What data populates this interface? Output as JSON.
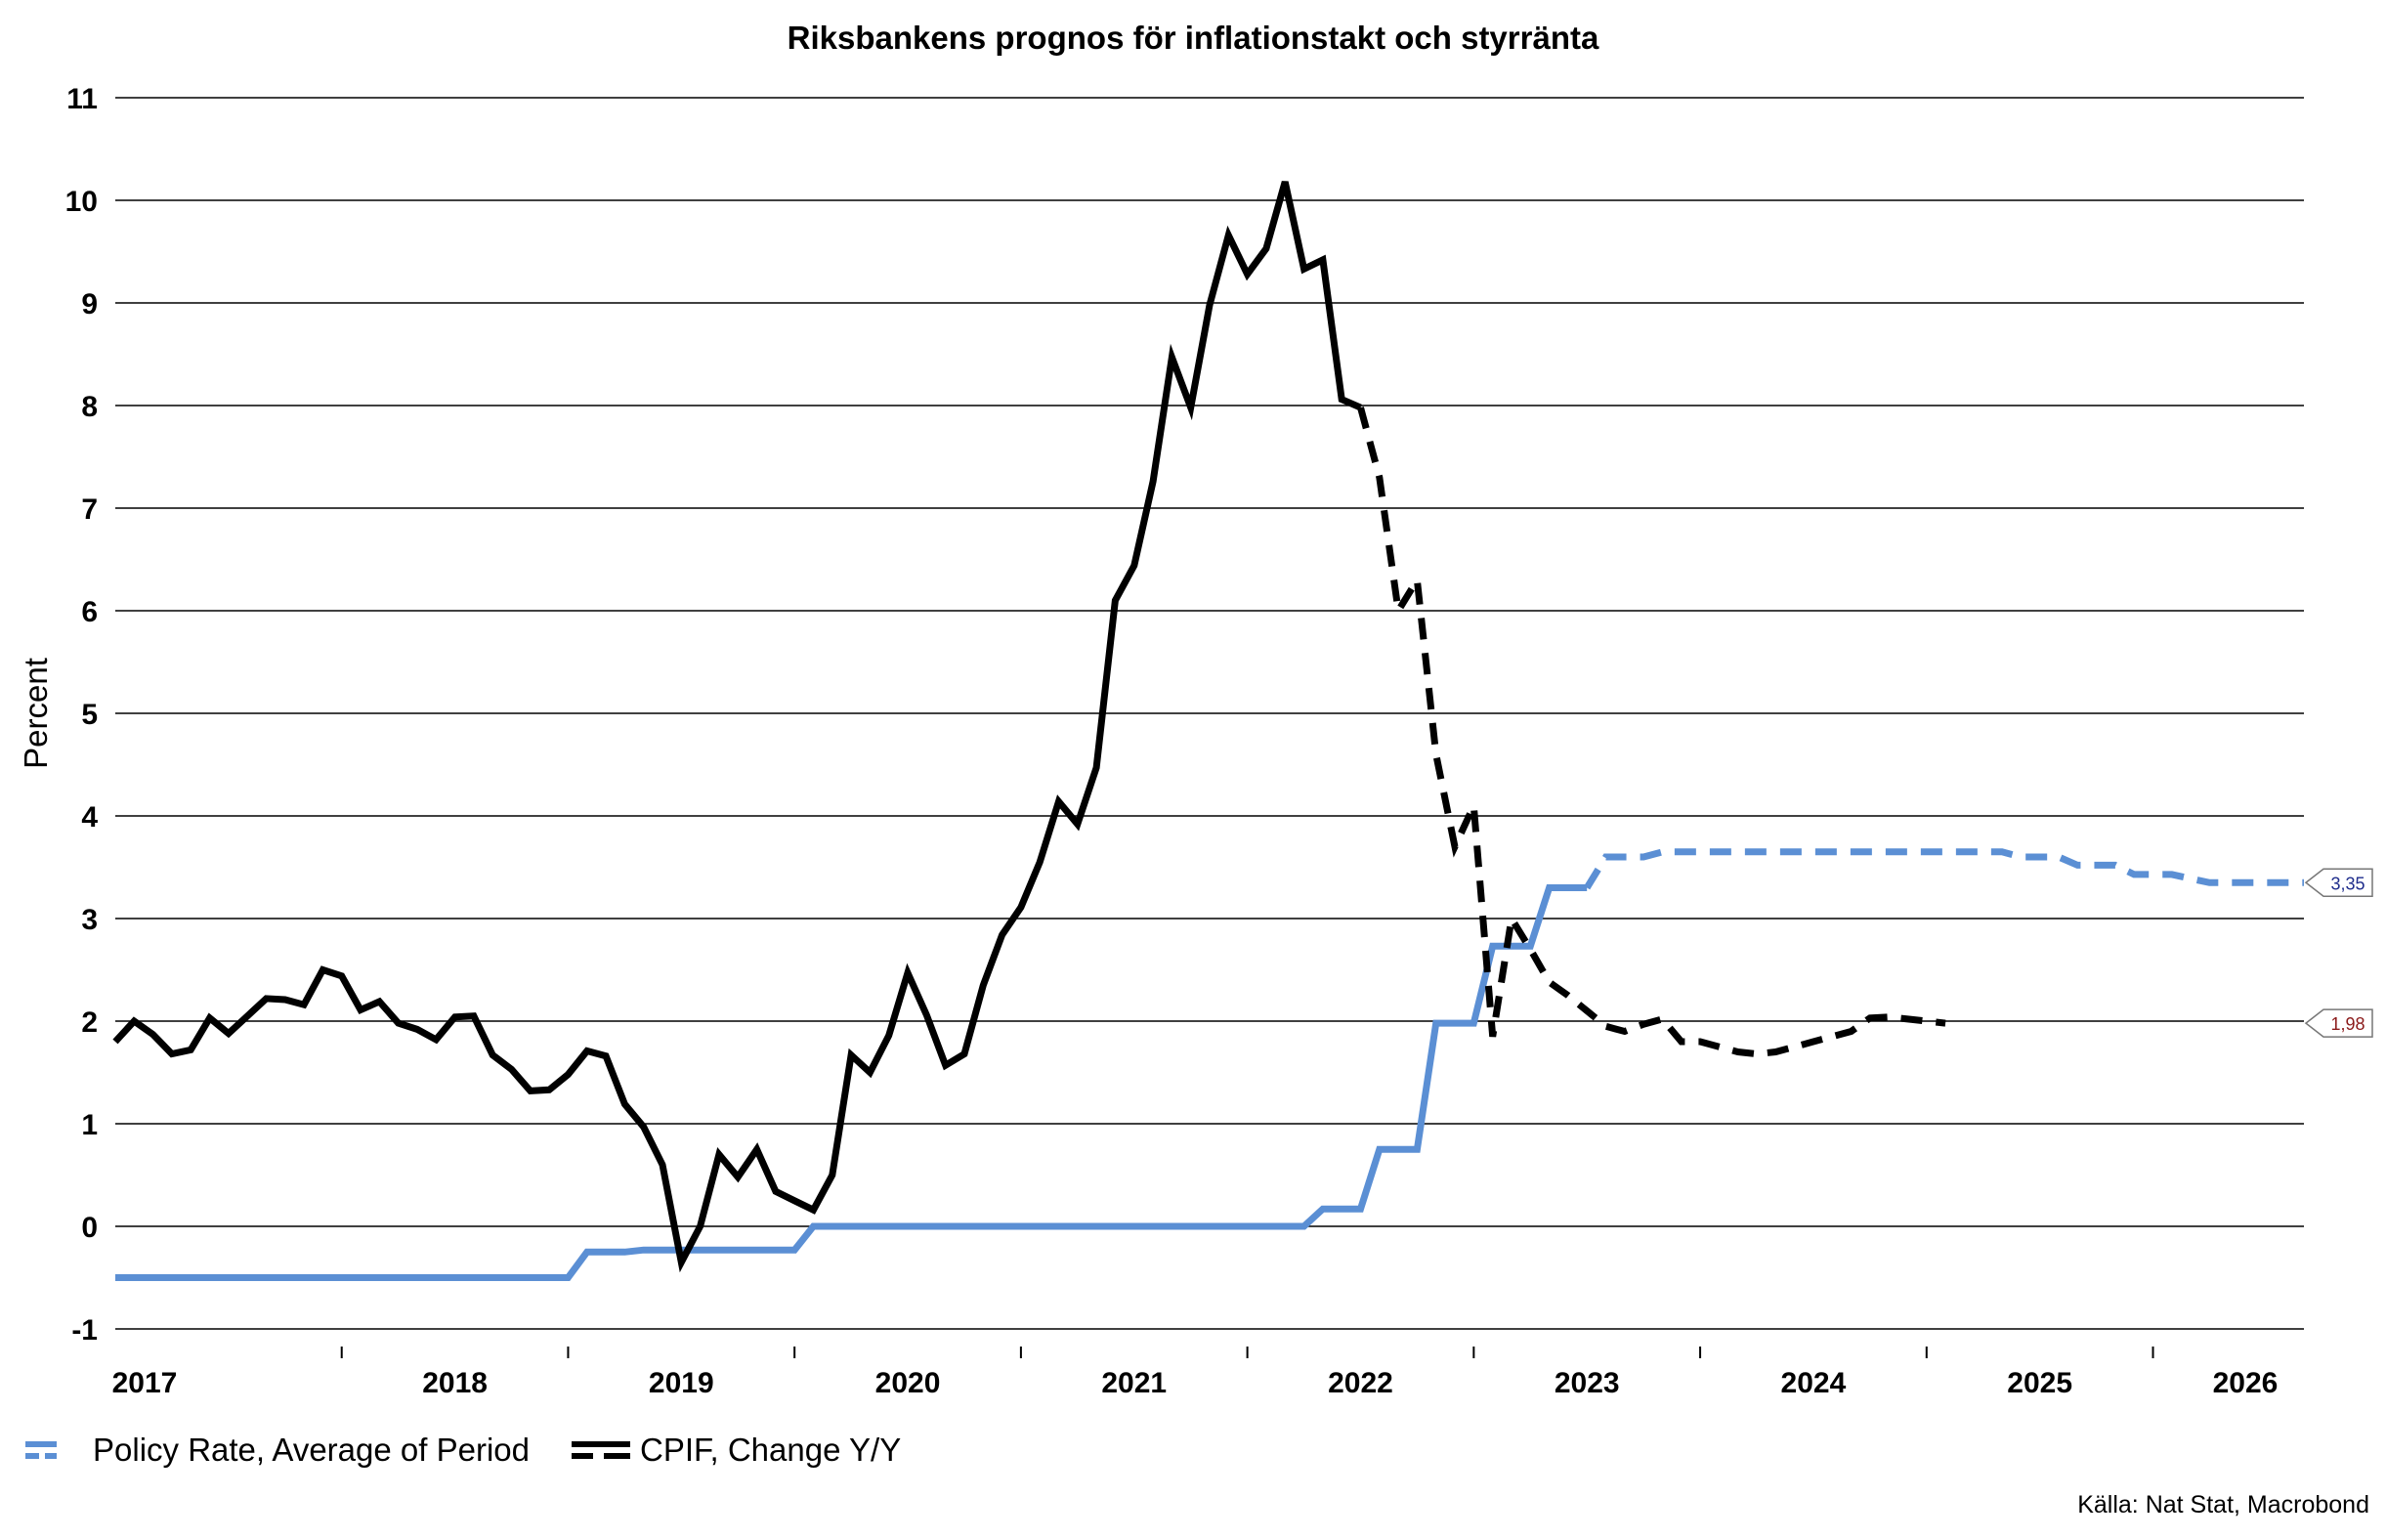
{
  "chart_data": {
    "type": "line",
    "title": "Riksbankens prognos för inflationstakt och styrränta",
    "ylabel": "Percent",
    "xlabel": "",
    "ylim": [
      -1,
      11
    ],
    "yticks": [
      -1,
      0,
      1,
      2,
      3,
      4,
      5,
      6,
      7,
      8,
      9,
      10,
      11
    ],
    "x_start": "2017-01",
    "x_end": "2026-09",
    "year_labels": [
      "2017",
      "2018",
      "2019",
      "2020",
      "2021",
      "2022",
      "2023",
      "2024",
      "2025",
      "2026"
    ],
    "grid": "horizontal",
    "legend_position": "bottom-left",
    "source": "Källa: Nat Stat, Macrobond",
    "series": [
      {
        "name": "Policy Rate, Average of Period",
        "color": "#5b8fd4",
        "end_label": "3,35",
        "end_label_color": "#1f2d8c",
        "actual": [
          [
            "2017-01",
            -0.5
          ],
          [
            "2019-01",
            -0.5
          ],
          [
            "2019-02",
            -0.25
          ],
          [
            "2019-04",
            -0.25
          ],
          [
            "2019-05",
            -0.23
          ],
          [
            "2020-01",
            -0.23
          ],
          [
            "2020-02",
            0.0
          ],
          [
            "2022-04",
            0.0
          ],
          [
            "2022-05",
            0.17
          ],
          [
            "2022-07",
            0.17
          ],
          [
            "2022-08",
            0.75
          ],
          [
            "2022-10",
            0.75
          ],
          [
            "2022-11",
            1.98
          ],
          [
            "2023-01",
            1.98
          ],
          [
            "2023-02",
            2.73
          ],
          [
            "2023-04",
            2.73
          ],
          [
            "2023-05",
            3.3
          ],
          [
            "2023-07",
            3.3
          ]
        ],
        "forecast": [
          [
            "2023-07",
            3.3
          ],
          [
            "2023-08",
            3.6
          ],
          [
            "2023-10",
            3.6
          ],
          [
            "2023-11",
            3.65
          ],
          [
            "2025-05",
            3.65
          ],
          [
            "2025-06",
            3.6
          ],
          [
            "2025-08",
            3.6
          ],
          [
            "2025-09",
            3.52
          ],
          [
            "2025-11",
            3.52
          ],
          [
            "2025-12",
            3.43
          ],
          [
            "2026-02",
            3.43
          ],
          [
            "2026-04",
            3.35
          ],
          [
            "2026-09",
            3.35
          ]
        ]
      },
      {
        "name": "CPIF, Change Y/Y",
        "color": "#000000",
        "end_label": "1,98",
        "end_label_color": "#8b1a1a",
        "actual": [
          [
            "2017-01",
            1.8
          ],
          [
            "2017-02",
            2.0
          ],
          [
            "2017-03",
            1.87
          ],
          [
            "2017-04",
            1.68
          ],
          [
            "2017-05",
            1.72
          ],
          [
            "2017-06",
            2.03
          ],
          [
            "2017-07",
            1.88
          ],
          [
            "2017-08",
            2.05
          ],
          [
            "2017-09",
            2.22
          ],
          [
            "2017-10",
            2.21
          ],
          [
            "2017-11",
            2.16
          ],
          [
            "2017-12",
            2.5
          ],
          [
            "2018-01",
            2.44
          ],
          [
            "2018-02",
            2.11
          ],
          [
            "2018-03",
            2.19
          ],
          [
            "2018-04",
            1.98
          ],
          [
            "2018-05",
            1.92
          ],
          [
            "2018-06",
            1.82
          ],
          [
            "2018-07",
            2.04
          ],
          [
            "2018-08",
            2.05
          ],
          [
            "2018-09",
            1.67
          ],
          [
            "2018-10",
            1.53
          ],
          [
            "2018-11",
            1.32
          ],
          [
            "2018-12",
            1.33
          ],
          [
            "2019-01",
            1.48
          ],
          [
            "2019-02",
            1.71
          ],
          [
            "2019-03",
            1.66
          ],
          [
            "2019-04",
            1.19
          ],
          [
            "2019-05",
            0.97
          ],
          [
            "2019-06",
            0.6
          ],
          [
            "2019-07",
            -0.35
          ],
          [
            "2019-08",
            0.0
          ],
          [
            "2019-09",
            0.7
          ],
          [
            "2019-10",
            0.48
          ],
          [
            "2019-11",
            0.75
          ],
          [
            "2019-12",
            0.34
          ],
          [
            "2020-01",
            0.25
          ],
          [
            "2020-02",
            0.16
          ],
          [
            "2020-03",
            0.5
          ],
          [
            "2020-04",
            1.67
          ],
          [
            "2020-05",
            1.5
          ],
          [
            "2020-06",
            1.86
          ],
          [
            "2020-07",
            2.47
          ],
          [
            "2020-08",
            2.06
          ],
          [
            "2020-09",
            1.57
          ],
          [
            "2020-10",
            1.68
          ],
          [
            "2020-11",
            2.35
          ],
          [
            "2020-12",
            2.84
          ],
          [
            "2021-01",
            3.11
          ],
          [
            "2021-02",
            3.55
          ],
          [
            "2021-03",
            4.14
          ],
          [
            "2021-04",
            3.92
          ],
          [
            "2021-05",
            4.47
          ],
          [
            "2021-06",
            6.1
          ],
          [
            "2021-07",
            6.44
          ],
          [
            "2021-08",
            7.26
          ],
          [
            "2021-09",
            8.47
          ],
          [
            "2021-10",
            7.98
          ],
          [
            "2021-11",
            8.98
          ],
          [
            "2021-12",
            9.66
          ],
          [
            "2022-01",
            9.28
          ],
          [
            "2022-02",
            9.53
          ],
          [
            "2022-03",
            10.18
          ],
          [
            "2022-04",
            9.33
          ],
          [
            "2022-05",
            9.42
          ],
          [
            "2022-06",
            8.06
          ],
          [
            "2022-07",
            7.98
          ]
        ],
        "forecast": [
          [
            "2022-07",
            7.98
          ],
          [
            "2022-08",
            7.3
          ],
          [
            "2022-09",
            6.0
          ],
          [
            "2022-10",
            6.3
          ],
          [
            "2022-11",
            4.6
          ],
          [
            "2022-12",
            3.7
          ],
          [
            "2023-01",
            4.1
          ],
          [
            "2023-02",
            1.85
          ],
          [
            "2023-03",
            3.0
          ],
          [
            "2023-04",
            2.7
          ],
          [
            "2023-05",
            2.38
          ],
          [
            "2023-06",
            2.25
          ],
          [
            "2023-07",
            2.1
          ],
          [
            "2023-08",
            1.95
          ],
          [
            "2023-09",
            1.9
          ],
          [
            "2023-10",
            1.97
          ],
          [
            "2023-11",
            2.02
          ],
          [
            "2023-12",
            1.8
          ],
          [
            "2024-01",
            1.8
          ],
          [
            "2024-02",
            1.75
          ],
          [
            "2024-03",
            1.7
          ],
          [
            "2024-04",
            1.68
          ],
          [
            "2024-05",
            1.7
          ],
          [
            "2024-06",
            1.75
          ],
          [
            "2024-07",
            1.8
          ],
          [
            "2024-08",
            1.85
          ],
          [
            "2024-09",
            1.9
          ],
          [
            "2024-10",
            2.03
          ],
          [
            "2024-11",
            2.04
          ],
          [
            "2024-12",
            2.02
          ],
          [
            "2025-01",
            2.0
          ],
          [
            "2025-02",
            1.98
          ]
        ]
      }
    ]
  }
}
